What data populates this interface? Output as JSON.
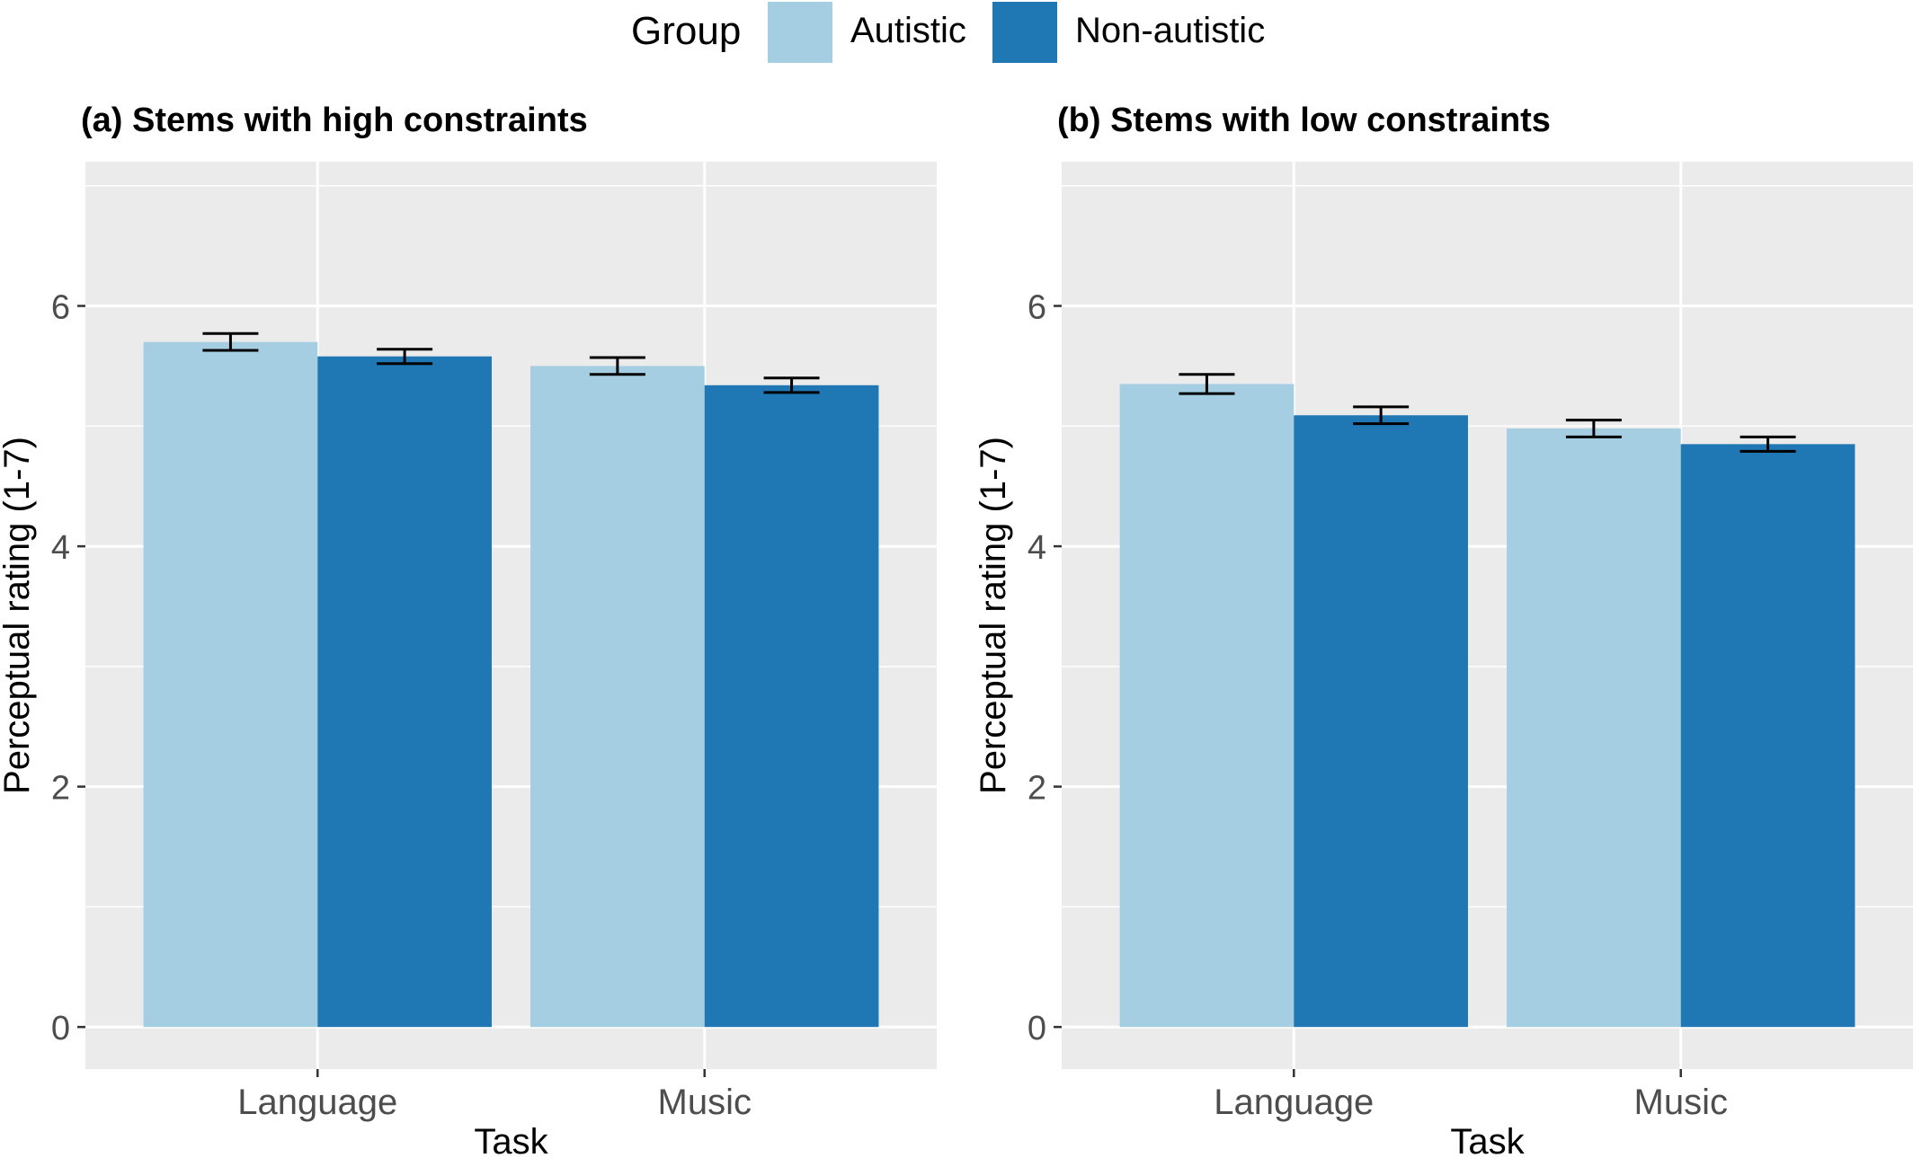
{
  "legend": {
    "title": "Group",
    "items": [
      {
        "label": "Autistic",
        "color": "#a6cee3"
      },
      {
        "label": "Non-autistic",
        "color": "#1f78b4"
      }
    ]
  },
  "chart_data": [
    {
      "type": "bar",
      "title": "(a) Stems with high constraints",
      "xlabel": "Task",
      "ylabel": "Perceptual rating (1-7)",
      "categories": [
        "Language",
        "Music"
      ],
      "ylim": [
        -0.35,
        7.2
      ],
      "yticks": [
        0,
        2,
        4,
        6
      ],
      "grid": true,
      "legend_position": "top",
      "series": [
        {
          "name": "Autistic",
          "color": "#a6cee3",
          "values": [
            5.7,
            5.5
          ],
          "error": [
            0.07,
            0.07
          ]
        },
        {
          "name": "Non-autistic",
          "color": "#1f78b4",
          "values": [
            5.58,
            5.34
          ],
          "error": [
            0.06,
            0.06
          ]
        }
      ]
    },
    {
      "type": "bar",
      "title": "(b) Stems with low constraints",
      "xlabel": "Task",
      "ylabel": "Perceptual rating (1-7)",
      "categories": [
        "Language",
        "Music"
      ],
      "ylim": [
        -0.35,
        7.2
      ],
      "yticks": [
        0,
        2,
        4,
        6
      ],
      "grid": true,
      "legend_position": "top",
      "series": [
        {
          "name": "Autistic",
          "color": "#a6cee3",
          "values": [
            5.35,
            4.98
          ],
          "error": [
            0.08,
            0.07
          ]
        },
        {
          "name": "Non-autistic",
          "color": "#1f78b4",
          "values": [
            5.09,
            4.85
          ],
          "error": [
            0.07,
            0.06
          ]
        }
      ]
    }
  ]
}
